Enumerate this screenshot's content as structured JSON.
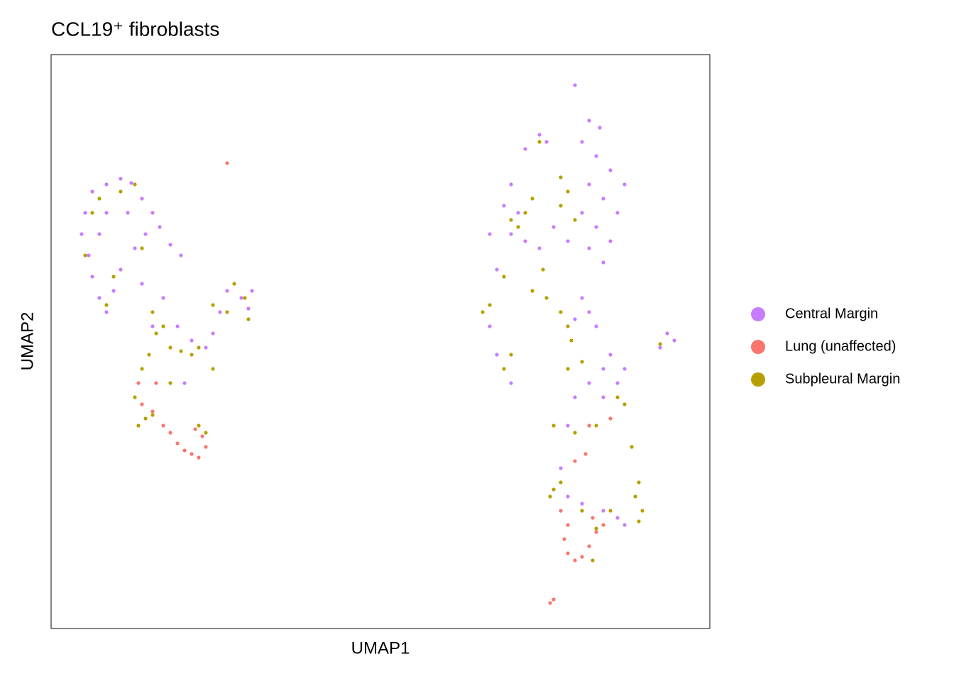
{
  "chart_data": {
    "type": "scatter",
    "title": "CCL19⁺ fibroblasts",
    "x_label": "UMAP1",
    "y_label": "UMAP2",
    "xlim": [
      72,
      1000
    ],
    "ylim": [
      -886,
      -77
    ],
    "legend": "right",
    "series": [
      {
        "name": "Central Margin",
        "color": "#C77CFF",
        "x": [
          130,
          150,
          170,
          185,
          200,
          215,
          225,
          240,
          255,
          120,
          115,
          125,
          130,
          140,
          150,
          160,
          170,
          190,
          205,
          180,
          150,
          140,
          200,
          230,
          250,
          270,
          290,
          300,
          310,
          320,
          340,
          355,
          350,
          215,
          260,
          195,
          810,
          830,
          845,
          820,
          840,
          860,
          830,
          850,
          870,
          820,
          840,
          860,
          830,
          850,
          800,
          780,
          770,
          760,
          740,
          720,
          710,
          730,
          720,
          740,
          760,
          690,
          700,
          690,
          700,
          720,
          820,
          830,
          840,
          810,
          860,
          880,
          870,
          850,
          830,
          810,
          850,
          800,
          790,
          800,
          820,
          850,
          870,
          880,
          940,
          950,
          930,
          880
        ],
        "y": [
          -270,
          -260,
          -252,
          -258,
          -280,
          -300,
          -320,
          -345,
          -360,
          -300,
          -330,
          -360,
          -390,
          -420,
          -440,
          -410,
          -380,
          -350,
          -330,
          -300,
          -300,
          -330,
          -400,
          -420,
          -460,
          -480,
          -490,
          -470,
          -440,
          -410,
          -420,
          -410,
          -435,
          -460,
          -540,
          -600,
          -120,
          -170,
          -180,
          -200,
          -220,
          -240,
          -260,
          -280,
          -300,
          -300,
          -320,
          -340,
          -350,
          -370,
          -340,
          -320,
          -200,
          -190,
          -210,
          -260,
          -290,
          -300,
          -330,
          -340,
          -350,
          -330,
          -380,
          -460,
          -500,
          -540,
          -420,
          -440,
          -460,
          -450,
          -500,
          -520,
          -540,
          -520,
          -540,
          -560,
          -560,
          -600,
          -660,
          -700,
          -710,
          -720,
          -730,
          -740,
          -470,
          -480,
          -490,
          -260
        ]
      },
      {
        "name": "Lung (unaffected)",
        "color": "#F8766D",
        "x": [
          240,
          250,
          260,
          270,
          280,
          290,
          285,
          275,
          230,
          220,
          215,
          200,
          195,
          320,
          780,
          775,
          790,
          800,
          795,
          800,
          810,
          820,
          830,
          840,
          835,
          850,
          830,
          860,
          825,
          810
        ],
        "y": [
          -610,
          -625,
          -635,
          -640,
          -645,
          -630,
          -615,
          -605,
          -600,
          -540,
          -580,
          -570,
          -540,
          -230,
          -845,
          -850,
          -720,
          -740,
          -760,
          -780,
          -790,
          -785,
          -770,
          -750,
          -730,
          -740,
          -600,
          -590,
          -640,
          -650
        ]
      },
      {
        "name": "Subpleural Margin",
        "color": "#B79F00",
        "x": [
          120,
          130,
          140,
          170,
          190,
          200,
          160,
          150,
          215,
          220,
          230,
          240,
          255,
          270,
          280,
          210,
          200,
          190,
          205,
          215,
          195,
          240,
          300,
          320,
          330,
          345,
          350,
          300,
          290,
          280,
          760,
          790,
          800,
          790,
          810,
          750,
          740,
          730,
          720,
          680,
          690,
          710,
          750,
          770,
          790,
          800,
          805,
          800,
          820,
          870,
          880,
          890,
          900,
          895,
          905,
          900,
          780,
          775,
          790,
          820,
          840,
          835,
          860,
          810,
          780,
          840,
          930,
          765,
          720,
          710
        ],
        "y": [
          -360,
          -300,
          -280,
          -270,
          -260,
          -350,
          -390,
          -430,
          -440,
          -470,
          -460,
          -490,
          -495,
          -500,
          -490,
          -500,
          -520,
          -560,
          -590,
          -585,
          -600,
          -540,
          -430,
          -440,
          -400,
          -420,
          -450,
          -520,
          -610,
          -600,
          -200,
          -250,
          -270,
          -290,
          -310,
          -280,
          -300,
          -320,
          -310,
          -440,
          -430,
          -390,
          -410,
          -420,
          -440,
          -460,
          -480,
          -520,
          -510,
          -560,
          -570,
          -630,
          -680,
          -700,
          -720,
          -735,
          -690,
          -700,
          -680,
          -720,
          -745,
          -790,
          -720,
          -610,
          -600,
          -600,
          -485,
          -380,
          -500,
          -520
        ]
      }
    ]
  }
}
